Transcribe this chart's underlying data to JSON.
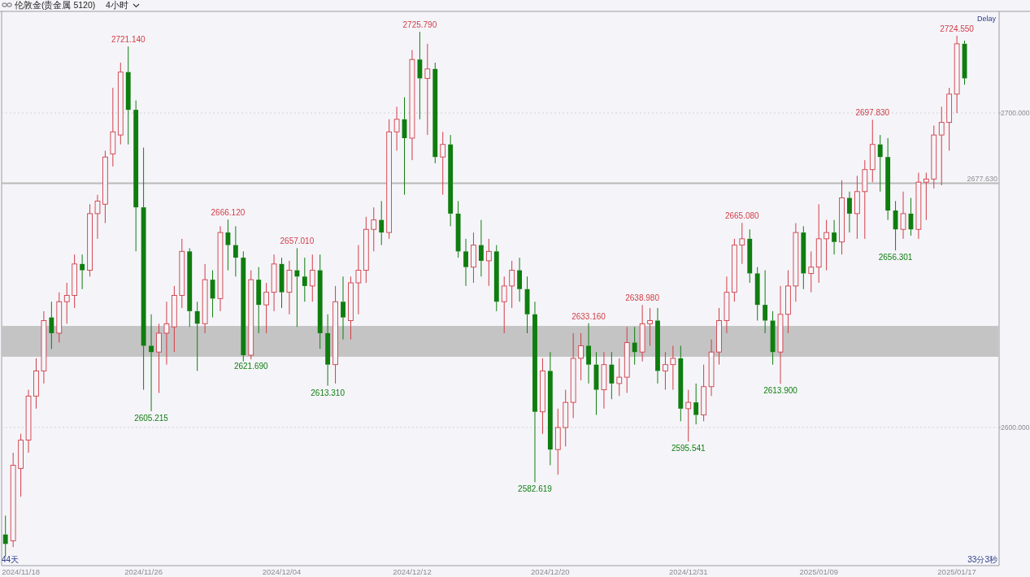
{
  "chart_data": {
    "type": "candlestick",
    "title": "伦敦金(贵金属 5120)",
    "subtitle": "4小时",
    "categories": [
      null,
      null,
      "2024/11/18",
      null,
      null,
      null,
      null,
      null,
      null,
      null,
      null,
      null,
      null,
      null,
      null,
      null,
      null,
      null,
      "2024/11/26",
      null,
      null,
      null,
      null,
      null,
      null,
      null,
      null,
      null,
      null,
      null,
      null,
      null,
      null,
      null,
      null,
      null,
      "2024/12/04",
      null,
      null,
      null,
      null,
      null,
      null,
      null,
      null,
      null,
      null,
      null,
      null,
      null,
      null,
      null,
      null,
      "2024/12/12",
      null,
      null,
      null,
      null,
      null,
      null,
      null,
      null,
      null,
      null,
      null,
      null,
      null,
      null,
      null,
      null,
      null,
      "2024/12/20",
      null,
      null,
      null,
      null,
      null,
      null,
      null,
      null,
      null,
      null,
      null,
      null,
      null,
      null,
      null,
      null,
      null,
      "2024/12/31",
      null,
      null,
      null,
      null,
      null,
      null,
      null,
      null,
      null,
      null,
      null,
      null,
      null,
      null,
      null,
      null,
      "2025/01/09",
      null,
      null,
      null,
      null,
      null,
      null,
      null,
      null,
      null,
      null,
      null,
      null,
      null,
      null,
      null,
      null,
      null,
      "2025/01/17",
      null,
      null,
      null,
      null,
      null
    ],
    "ohlc": [
      [
        2566,
        2572,
        2559,
        2563
      ],
      [
        2564,
        2592,
        2562,
        2588
      ],
      [
        2587,
        2598,
        2578,
        2596
      ],
      [
        2596,
        2612,
        2592,
        2610
      ],
      [
        2610,
        2622,
        2606,
        2618
      ],
      [
        2618,
        2637,
        2614,
        2634
      ],
      [
        2635,
        2640,
        2625,
        2630
      ],
      [
        2630,
        2643,
        2627,
        2640
      ],
      [
        2640,
        2646,
        2633,
        2642
      ],
      [
        2642,
        2655,
        2638,
        2652
      ],
      [
        2652,
        2655,
        2644,
        2650
      ],
      [
        2650,
        2671,
        2648,
        2668
      ],
      [
        2668,
        2674,
        2660,
        2672
      ],
      [
        2671,
        2688,
        2665,
        2686
      ],
      [
        2687,
        2708,
        2683,
        2694
      ],
      [
        2693,
        2716,
        2690,
        2713
      ],
      [
        2713,
        2721.14,
        2690,
        2701
      ],
      [
        2701,
        2704,
        2656,
        2670
      ],
      [
        2670,
        2689,
        2612,
        2626
      ],
      [
        2626,
        2636,
        2605.215,
        2624
      ],
      [
        2624,
        2633,
        2611,
        2630
      ],
      [
        2630,
        2640,
        2620,
        2633
      ],
      [
        2632,
        2645,
        2624,
        2642
      ],
      [
        2642,
        2660,
        2638,
        2656
      ],
      [
        2656,
        2657,
        2632,
        2637
      ],
      [
        2637,
        2640,
        2618,
        2633
      ],
      [
        2633,
        2652,
        2630,
        2647
      ],
      [
        2647,
        2650,
        2635,
        2641
      ],
      [
        2641,
        2664,
        2637,
        2662
      ],
      [
        2662,
        2666.12,
        2650,
        2658
      ],
      [
        2658,
        2664,
        2648,
        2654
      ],
      [
        2654,
        2656,
        2621,
        2623
      ],
      [
        2623,
        2650,
        2621.69,
        2647
      ],
      [
        2647,
        2651,
        2630,
        2639
      ],
      [
        2639,
        2646,
        2630,
        2643
      ],
      [
        2643,
        2655,
        2637,
        2652
      ],
      [
        2652,
        2654,
        2638,
        2643
      ],
      [
        2643,
        2653,
        2636,
        2650
      ],
      [
        2650,
        2657.01,
        2632,
        2648
      ],
      [
        2648,
        2654,
        2640,
        2645
      ],
      [
        2645,
        2655,
        2640,
        2650
      ],
      [
        2650,
        2655,
        2625,
        2630
      ],
      [
        2630,
        2636,
        2613.31,
        2620
      ],
      [
        2620,
        2645,
        2614,
        2640
      ],
      [
        2640,
        2648,
        2628,
        2635
      ],
      [
        2634,
        2648,
        2628,
        2646
      ],
      [
        2646,
        2658,
        2636,
        2650
      ],
      [
        2650,
        2667,
        2646,
        2663
      ],
      [
        2663,
        2670,
        2656,
        2666
      ],
      [
        2666,
        2672,
        2658,
        2662
      ],
      [
        2662,
        2698,
        2660,
        2694
      ],
      [
        2694,
        2702,
        2688,
        2698
      ],
      [
        2698,
        2705,
        2674,
        2692
      ],
      [
        2692,
        2720,
        2685,
        2717
      ],
      [
        2717,
        2725.79,
        2698,
        2711
      ],
      [
        2711,
        2722,
        2693,
        2714
      ],
      [
        2714,
        2716,
        2684,
        2686
      ],
      [
        2686,
        2694,
        2674,
        2690
      ],
      [
        2690,
        2693,
        2664,
        2668
      ],
      [
        2668,
        2672,
        2654,
        2656
      ],
      [
        2656,
        2660,
        2645,
        2651
      ],
      [
        2651,
        2662,
        2646,
        2658
      ],
      [
        2658,
        2666,
        2648,
        2653
      ],
      [
        2653,
        2660,
        2645,
        2656
      ],
      [
        2656,
        2658,
        2637,
        2640
      ],
      [
        2640,
        2648,
        2630,
        2645
      ],
      [
        2645,
        2653,
        2638,
        2650
      ],
      [
        2650,
        2654,
        2640,
        2644
      ],
      [
        2644,
        2648,
        2630,
        2636
      ],
      [
        2636,
        2640,
        2582.619,
        2605
      ],
      [
        2605,
        2622,
        2598,
        2618
      ],
      [
        2618,
        2624,
        2588,
        2593
      ],
      [
        2593,
        2606,
        2585,
        2600
      ],
      [
        2600,
        2612,
        2594,
        2608
      ],
      [
        2608,
        2630,
        2603,
        2622
      ],
      [
        2622,
        2630,
        2615,
        2626
      ],
      [
        2626,
        2633.16,
        2614,
        2620
      ],
      [
        2620,
        2624,
        2604,
        2612
      ],
      [
        2612,
        2624,
        2606,
        2620
      ],
      [
        2620,
        2624,
        2609,
        2614
      ],
      [
        2614,
        2622,
        2610,
        2616
      ],
      [
        2616,
        2632,
        2611,
        2627
      ],
      [
        2627,
        2632,
        2620,
        2624
      ],
      [
        2624,
        2638.98,
        2621,
        2633
      ],
      [
        2633,
        2638,
        2626,
        2634
      ],
      [
        2634,
        2638,
        2614,
        2618
      ],
      [
        2618,
        2624,
        2612,
        2620
      ],
      [
        2620,
        2626,
        2612,
        2622
      ],
      [
        2622,
        2626,
        2602,
        2606
      ],
      [
        2606,
        2612,
        2595.541,
        2608
      ],
      [
        2608,
        2614,
        2601,
        2604
      ],
      [
        2604,
        2620,
        2602,
        2613
      ],
      [
        2613,
        2628,
        2610,
        2624
      ],
      [
        2624,
        2638,
        2620,
        2634
      ],
      [
        2634,
        2648,
        2630,
        2643
      ],
      [
        2643,
        2660,
        2640,
        2658
      ],
      [
        2658,
        2665.08,
        2652,
        2660
      ],
      [
        2660,
        2663,
        2646,
        2649
      ],
      [
        2649,
        2651,
        2634,
        2639
      ],
      [
        2639,
        2650,
        2630,
        2634
      ],
      [
        2634,
        2637,
        2620,
        2624
      ],
      [
        2624,
        2645,
        2613.9,
        2636
      ],
      [
        2636,
        2650,
        2630,
        2645
      ],
      [
        2645,
        2665,
        2640,
        2662
      ],
      [
        2662,
        2664,
        2644,
        2649
      ],
      [
        2649,
        2656,
        2643,
        2651
      ],
      [
        2651,
        2671,
        2646,
        2660
      ],
      [
        2660,
        2666,
        2650,
        2662
      ],
      [
        2662,
        2666,
        2655,
        2659
      ],
      [
        2659,
        2678.6,
        2655,
        2673
      ],
      [
        2673,
        2675,
        2662,
        2668
      ],
      [
        2668,
        2680,
        2660,
        2675
      ],
      [
        2675,
        2685,
        2660,
        2682
      ],
      [
        2682,
        2697.83,
        2678,
        2690
      ],
      [
        2690,
        2693,
        2675,
        2686
      ],
      [
        2686,
        2692,
        2666,
        2669
      ],
      [
        2669,
        2672,
        2656.301,
        2663
      ],
      [
        2663,
        2675,
        2660,
        2668
      ],
      [
        2668,
        2673,
        2661,
        2663
      ],
      [
        2663,
        2681,
        2660,
        2678
      ],
      [
        2678,
        2681,
        2666,
        2679
      ],
      [
        2679,
        2696,
        2676,
        2693
      ],
      [
        2693,
        2702,
        2677,
        2697
      ],
      [
        2697,
        2708,
        2688,
        2706
      ],
      [
        2706,
        2724.55,
        2700,
        2722
      ],
      [
        2722,
        2723,
        2709,
        2711
      ],
      null,
      null,
      null,
      null
    ],
    "colors": [
      "#0f7d0f",
      "#d23c46",
      "#d23c46",
      "#d23c46",
      "#d23c46",
      "#d23c46",
      "#0f7d0f",
      "#d23c46",
      "#d23c46",
      "#d23c46",
      "#0f7d0f",
      "#d23c46",
      "#d23c46",
      "#d23c46",
      "#d23c46",
      "#d23c46",
      "#0f7d0f",
      "#0f7d0f",
      "#0f7d0f",
      "#0f7d0f",
      "#d23c46",
      "#d23c46",
      "#d23c46",
      "#d23c46",
      "#0f7d0f",
      "#0f7d0f",
      "#d23c46",
      "#0f7d0f",
      "#d23c46",
      "#0f7d0f",
      "#0f7d0f",
      "#0f7d0f",
      "#d23c46",
      "#0f7d0f",
      "#d23c46",
      "#d23c46",
      "#0f7d0f",
      "#d23c46",
      "#0f7d0f",
      "#0f7d0f",
      "#d23c46",
      "#0f7d0f",
      "#0f7d0f",
      "#d23c46",
      "#0f7d0f",
      "#d23c46",
      "#d23c46",
      "#d23c46",
      "#d23c46",
      "#0f7d0f",
      "#d23c46",
      "#d23c46",
      "#0f7d0f",
      "#d23c46",
      "#0f7d0f",
      "#d23c46",
      "#0f7d0f",
      "#d23c46",
      "#0f7d0f",
      "#0f7d0f",
      "#0f7d0f",
      "#d23c46",
      "#0f7d0f",
      "#d23c46",
      "#0f7d0f",
      "#d23c46",
      "#d23c46",
      "#0f7d0f",
      "#0f7d0f",
      "#0f7d0f",
      "#d23c46",
      "#0f7d0f",
      "#d23c46",
      "#d23c46",
      "#d23c46",
      "#d23c46",
      "#0f7d0f",
      "#0f7d0f",
      "#d23c46",
      "#0f7d0f",
      "#d23c46",
      "#d23c46",
      "#0f7d0f",
      "#d23c46",
      "#d23c46",
      "#0f7d0f",
      "#d23c46",
      "#d23c46",
      "#0f7d0f",
      "#d23c46",
      "#0f7d0f",
      "#d23c46",
      "#d23c46",
      "#d23c46",
      "#d23c46",
      "#d23c46",
      "#d23c46",
      "#0f7d0f",
      "#0f7d0f",
      "#0f7d0f",
      "#0f7d0f",
      "#d23c46",
      "#d23c46",
      "#d23c46",
      "#0f7d0f",
      "#d23c46",
      "#d23c46",
      "#d23c46",
      "#0f7d0f",
      "#d23c46",
      "#0f7d0f",
      "#d23c46",
      "#d23c46",
      "#d23c46",
      "#0f7d0f",
      "#0f7d0f",
      "#0f7d0f",
      "#d23c46",
      "#0f7d0f",
      "#d23c46",
      "#d23c46",
      "#d23c46",
      "#d23c46",
      "#d23c46",
      "#d23c46",
      "#0f7d0f",
      null,
      null,
      null,
      null
    ],
    "ylim": [
      2556.1,
      2732.3
    ],
    "yticks": [
      {
        "value": 2600,
        "label": "2600.000"
      },
      {
        "value": 2700,
        "label": "2700.000"
      }
    ],
    "grid": "y",
    "ref_lines": [
      {
        "axis": "y",
        "value": 2677.63,
        "label": "2677.630",
        "color": "#b9b9b9"
      }
    ],
    "bands": [
      {
        "axis": "y",
        "from": 2622.5,
        "to": 2632.3,
        "color": "#c4c4c4"
      }
    ],
    "annotations": [
      "Delay",
      "44天",
      "33分3秒",
      {
        "text": "2721.140",
        "y": 2721.14
      },
      {
        "text": "2605.215",
        "y": 2605.215
      },
      {
        "text": "2666.120",
        "y": 2666.12
      },
      {
        "text": "2621.690",
        "y": 2621.69
      },
      {
        "text": "2657.010",
        "y": 2657.01
      },
      {
        "text": "2613.310",
        "y": 2613.31
      },
      {
        "text": "2725.790",
        "y": 2725.79
      },
      {
        "text": "2582.619",
        "y": 2582.619
      },
      {
        "text": "2633.160",
        "y": 2633.16
      },
      {
        "text": "2638.980",
        "y": 2638.98
      },
      {
        "text": "2595.541",
        "y": 2595.541
      },
      {
        "text": "2665.080",
        "y": 2665.08
      },
      {
        "text": "2613.900",
        "y": 2613.9
      },
      {
        "text": "2697.830",
        "y": 2697.83
      },
      {
        "text": "2656.301",
        "y": 2656.301
      },
      {
        "text": "2724.550",
        "y": 2724.55
      }
    ]
  }
}
